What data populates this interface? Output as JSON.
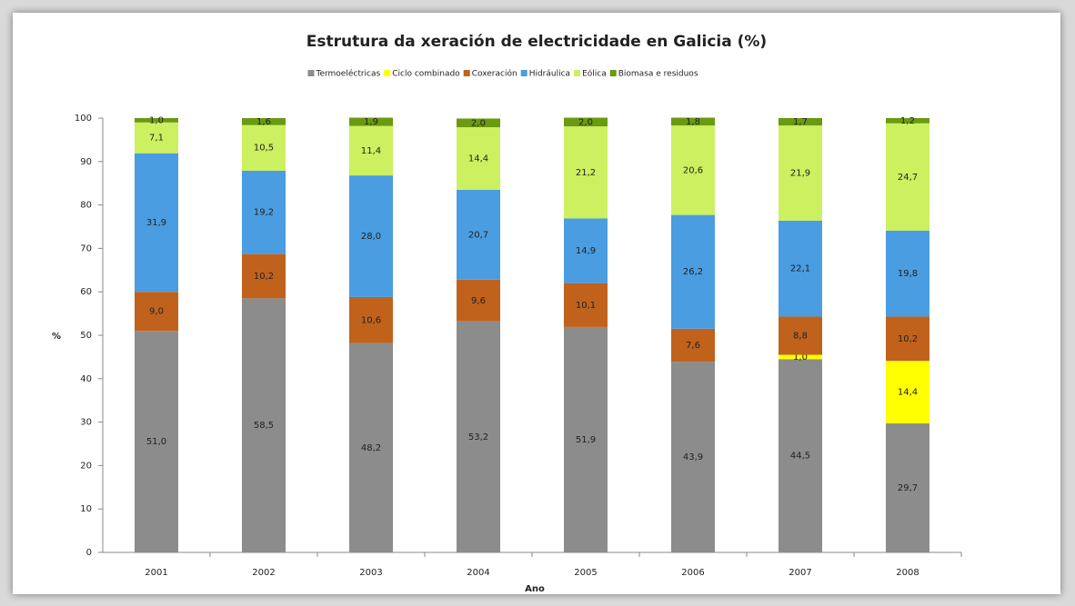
{
  "chart_data": {
    "type": "stacked_bar",
    "title": "Estrutura da xeración de electricidade en Galicia (%)",
    "x_label": "Ano",
    "y_label": "%",
    "categories": [
      "2001",
      "2002",
      "2003",
      "2004",
      "2005",
      "2006",
      "2007",
      "2008"
    ],
    "ylim": [
      0,
      100
    ],
    "yticks": [
      0,
      10,
      20,
      30,
      40,
      50,
      60,
      70,
      80,
      90,
      100
    ],
    "legend": "top",
    "series": [
      {
        "name": "Termoeléctricas",
        "color": "#8c8c8c",
        "values": [
          51.0,
          58.5,
          48.2,
          53.2,
          51.9,
          43.9,
          44.5,
          29.7
        ],
        "value_labels": [
          "51,0",
          "58,5",
          "48,2",
          "53,2",
          "51,9",
          "43,9",
          "44,5",
          "29,7"
        ]
      },
      {
        "name": "Ciclo combinado",
        "color": "#ffff00",
        "values": [
          null,
          null,
          null,
          null,
          null,
          null,
          1.0,
          14.4
        ],
        "value_labels": [
          null,
          null,
          null,
          null,
          null,
          null,
          "1,0",
          "14,4"
        ]
      },
      {
        "name": "Coxeración",
        "color": "#c0621c",
        "values": [
          9.0,
          10.2,
          10.6,
          9.6,
          10.1,
          7.6,
          8.8,
          10.2
        ],
        "value_labels": [
          "9,0",
          "10,2",
          "10,6",
          "9,6",
          "10,1",
          "7,6",
          "8,8",
          "10,2"
        ]
      },
      {
        "name": "Hidráulica",
        "color": "#4a9de0",
        "values": [
          31.9,
          19.2,
          28.0,
          20.7,
          14.9,
          26.2,
          22.1,
          19.8
        ],
        "value_labels": [
          "31,9",
          "19,2",
          "28,0",
          "20,7",
          "14,9",
          "26,2",
          "22,1",
          "19,8"
        ]
      },
      {
        "name": "Eólica",
        "color": "#ccf060",
        "values": [
          7.1,
          10.5,
          11.4,
          14.4,
          21.2,
          20.6,
          21.9,
          24.7
        ],
        "value_labels": [
          "7,1",
          "10,5",
          "11,4",
          "14,4",
          "21,2",
          "20,6",
          "21,9",
          "24,7"
        ]
      },
      {
        "name": "Biomasa e residuos",
        "color": "#6a9a10",
        "values": [
          1.0,
          1.6,
          1.9,
          2.0,
          2.0,
          1.8,
          1.7,
          1.2
        ],
        "value_labels": [
          "1,0",
          "1,6",
          "1,9",
          "2,0",
          "2,0",
          "1,8",
          "1,7",
          "1,2"
        ]
      }
    ]
  }
}
